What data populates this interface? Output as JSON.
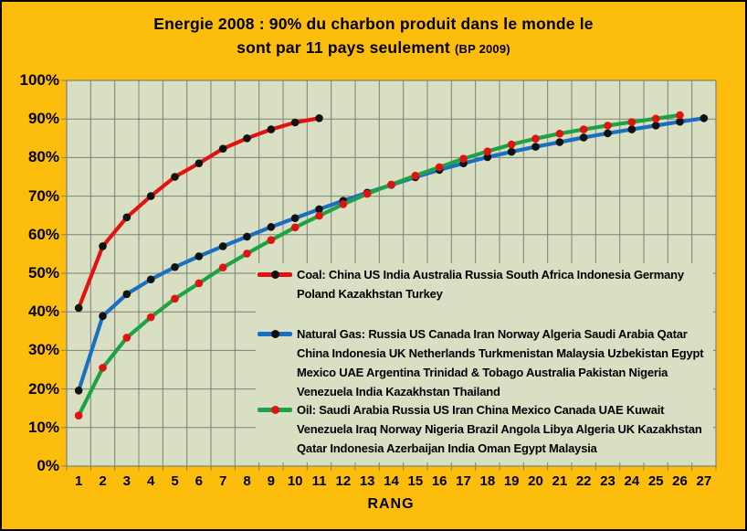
{
  "title": {
    "line1": "Energie 2008 : 90% du charbon produit dans le monde  le",
    "line2": "sont  par 11 pays seulement",
    "source": "(BP 2009)"
  },
  "colors": {
    "background": "#fdbd0d",
    "plot_background": "#d8dfc3",
    "gridline": "#7e8172",
    "coal_line": "#e01312",
    "gas_line": "#1b6fc1",
    "oil_line": "#1da245",
    "dark_marker": "#111111",
    "text": "#000000"
  },
  "chart_data": {
    "type": "line",
    "title": "Energie 2008 : 90% du charbon produit dans le monde le sont par 11 pays seulement (BP 2009)",
    "xlabel": "RANG",
    "ylabel": "",
    "ylim": [
      0,
      100
    ],
    "grid": true,
    "legend_position": "inside-right",
    "x_categories": [
      "1",
      "2",
      "3",
      "4",
      "5",
      "6",
      "7",
      "8",
      "9",
      "10",
      "11",
      "12",
      "13",
      "14",
      "15",
      "16",
      "17",
      "18",
      "19",
      "20",
      "21",
      "22",
      "23",
      "24",
      "25",
      "26",
      "27"
    ],
    "y_tick_labels": [
      "0%",
      "10%",
      "20%",
      "30%",
      "40%",
      "50%",
      "60%",
      "70%",
      "80%",
      "90%",
      "100%"
    ],
    "series": [
      {
        "name": "Coal",
        "color": "#e01312",
        "marker_color": "#111111",
        "legend_label": "Coal:  China US India Australia Russia South Africa Indonesia Germany Poland Kazakhstan Turkey",
        "values": [
          41,
          57,
          64.5,
          70,
          75,
          78.5,
          82.3,
          85,
          87.3,
          89.1,
          90.2
        ]
      },
      {
        "name": "Natural Gas",
        "color": "#1b6fc1",
        "marker_color": "#111111",
        "legend_label": "Natural Gas:  Russia US Canada Iran Norway Algeria Saudi Arabia Qatar China Indonesia UK Netherlands Turkmenistan Malaysia Uzbekistan Egypt Mexico UAE Argentina Trinidad & Tobago Australia Pakistan Nigeria Venezuela India Kazakhstan Thailand",
        "values": [
          19.6,
          38.9,
          44.6,
          48.4,
          51.6,
          54.4,
          57,
          59.5,
          62,
          64.3,
          66.6,
          68.8,
          70.9,
          72.9,
          74.9,
          76.8,
          78.5,
          80.1,
          81.5,
          82.8,
          84,
          85.2,
          86.3,
          87.3,
          88.3,
          89.3,
          90.2
        ]
      },
      {
        "name": "Oil",
        "color": "#1da245",
        "marker_color": "#e01312",
        "legend_label": "Oil:  Saudi Arabia Russia US Iran China Mexico Canada UAE Kuwait Venezuela Iraq Norway Nigeria Brazil Angola Libya Algeria UK Kazakhstan Qatar Indonesia Azerbaijan India Oman Egypt Malaysia",
        "values": [
          13.1,
          25.5,
          33.3,
          38.6,
          43.4,
          47.4,
          51.5,
          55.1,
          58.6,
          61.9,
          64.9,
          67.9,
          70.6,
          73,
          75.3,
          77.5,
          79.7,
          81.6,
          83.4,
          84.9,
          86.2,
          87.3,
          88.3,
          89.2,
          90.1,
          91
        ]
      }
    ]
  }
}
